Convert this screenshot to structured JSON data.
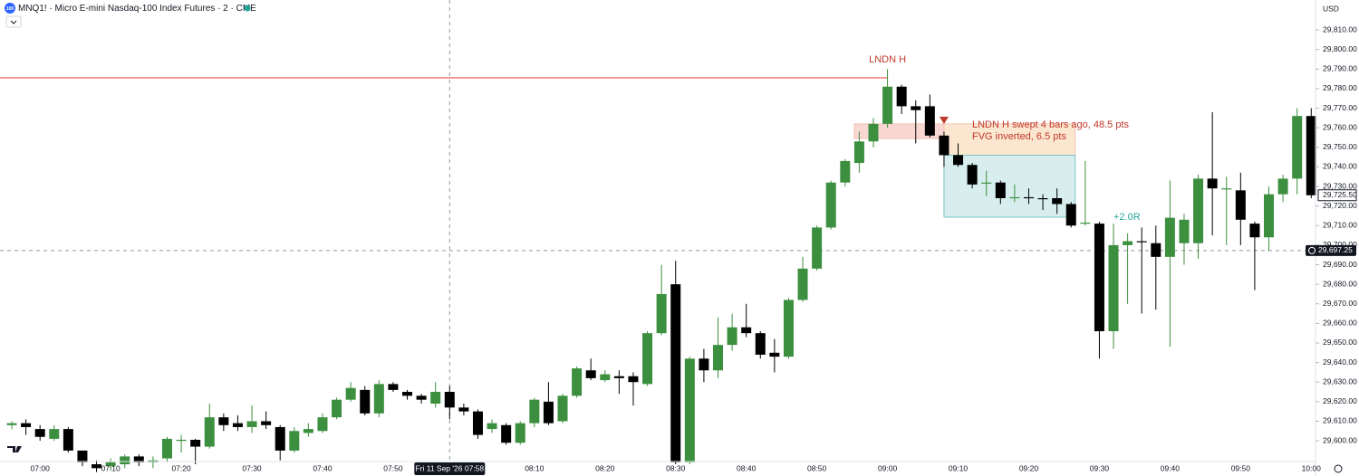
{
  "chart_data": {
    "type": "candlestick",
    "badge": "100",
    "title": "MNQ1! · Micro E-mini Nasdaq-100 Index Futures · 2 · CME",
    "currency": "USD",
    "up_color": "#3c8f3f",
    "down_color": "#000000",
    "categories": [
      null,
      null,
      "07:00",
      null,
      null,
      null,
      null,
      "07:10",
      null,
      null,
      null,
      null,
      "07:20",
      null,
      null,
      null,
      null,
      "07:30",
      null,
      null,
      null,
      null,
      "07:40",
      null,
      null,
      null,
      null,
      "07:50",
      null,
      null,
      null,
      null,
      null,
      null,
      null,
      null,
      null,
      "08:10",
      null,
      null,
      null,
      null,
      "08:20",
      null,
      null,
      null,
      null,
      "08:30",
      null,
      null,
      null,
      null,
      "08:40",
      null,
      null,
      null,
      null,
      "08:50",
      null,
      null,
      null,
      null,
      "09:00",
      null,
      null,
      null,
      null,
      "09:10",
      null,
      null,
      null,
      null,
      "09:20",
      null,
      null,
      null,
      null,
      "09:30",
      null,
      null,
      null,
      null,
      "09:40",
      null,
      null,
      null,
      null,
      "09:50",
      null,
      null,
      null,
      null,
      "10:00"
    ],
    "open": [
      29608,
      29609,
      29606,
      29601,
      29606,
      29595,
      29588,
      29587,
      29588,
      29592,
      29589,
      29591,
      29600,
      29600.5,
      29597,
      29612,
      29609,
      29607,
      29610,
      29607,
      29595,
      29604,
      29605,
      29612,
      29621,
      29626,
      29614,
      29629,
      29625,
      29623,
      29619,
      29625,
      29617,
      29615,
      29606,
      29608,
      29599,
      29609,
      29620,
      29610,
      29623,
      29636,
      29631,
      29633,
      29633,
      29629,
      29655,
      29680,
      29589,
      29642,
      29636,
      29649,
      29658,
      29655,
      29645,
      29643,
      29672,
      29688,
      29709,
      29732,
      29742,
      29753,
      29762,
      29781,
      29771,
      29771,
      29756,
      29746,
      29741,
      29731.5,
      29732,
      29724,
      29724.5,
      29724,
      29724,
      29721,
      29711,
      29711,
      29656,
      29700,
      29702,
      29701,
      29694,
      29701,
      29701,
      29734,
      29729,
      29728,
      29711,
      29704,
      29726,
      29734,
      29766
    ],
    "high": [
      29610,
      29611,
      29608,
      29608,
      29607,
      29595,
      29590,
      29591,
      29593,
      29593,
      29592,
      29602,
      29603,
      29601,
      29619,
      29614,
      29613,
      29618,
      29615,
      29608,
      29607,
      29609,
      29614,
      29622,
      29630,
      29628,
      29631,
      29630,
      29626,
      29624,
      29630,
      29628,
      29619,
      29616,
      29611,
      29609,
      29610,
      29622,
      29630,
      29624,
      29638,
      29642,
      29636,
      29636,
      29635,
      29656,
      29690,
      29692,
      29643,
      29647,
      29663,
      29665,
      29670,
      29656,
      29652,
      29673,
      29694,
      29710,
      29733,
      29744,
      29758,
      29765,
      29790,
      29782,
      29774,
      29777,
      29758,
      29752,
      29742,
      29738,
      29733,
      29731,
      29729,
      29726,
      29729,
      29722,
      29743,
      29712,
      29711,
      29706,
      29709,
      29710,
      29733,
      29716,
      29736,
      29768,
      29735,
      29737,
      29712,
      29730,
      29736,
      29770,
      29770
    ],
    "low": [
      29606,
      29603,
      29600,
      29600,
      29594,
      29587,
      29584,
      29585,
      29586,
      29587,
      29586,
      29589,
      29594,
      29588,
      29596,
      29605,
      29605,
      29604,
      29606,
      29590,
      29594,
      29602,
      29604,
      29611,
      29620,
      29613,
      29612,
      29625,
      29621,
      29619,
      29617,
      29611,
      29613,
      29601,
      29604,
      29598,
      29598,
      29607,
      29608,
      29609,
      29622,
      29631,
      29630,
      29624,
      29618,
      29628,
      29654,
      29588,
      29588,
      29630,
      29632,
      29646,
      29653,
      29642,
      29635,
      29642,
      29671,
      29687,
      29708,
      29730,
      29737,
      29750,
      29760,
      29767,
      29752,
      29755,
      29740,
      29740,
      29729,
      29725,
      29721,
      29722,
      29721,
      29718,
      29716,
      29709,
      29710,
      29642,
      29647,
      29670,
      29665,
      29667,
      29648,
      29690,
      29693,
      29705,
      29700,
      29700,
      29677,
      29697,
      29722,
      29726,
      29724
    ],
    "close": [
      29609,
      29607,
      29602,
      29606,
      29595,
      29589,
      29586,
      29589,
      29592,
      29589,
      29590,
      29601,
      29600.5,
      29597,
      29612,
      29608,
      29607,
      29610,
      29608,
      29595,
      29605,
      29606,
      29612,
      29621,
      29627,
      29614,
      29629,
      29626,
      29623,
      29621,
      29625,
      29617,
      29615,
      29603,
      29609,
      29599,
      29609,
      29621,
      29609,
      29623,
      29637,
      29632,
      29634,
      29632,
      29630,
      29655,
      29675,
      29589,
      29642,
      29636,
      29649,
      29658,
      29655,
      29644,
      29643,
      29672,
      29688,
      29709,
      29732,
      29743,
      29753,
      29762,
      29781,
      29771,
      29769,
      29756,
      29746,
      29741,
      29731,
      29732,
      29724,
      29724.5,
      29724,
      29723.5,
      29721,
      29710,
      29711.5,
      29656,
      29700,
      29702,
      29701.5,
      29694,
      29714,
      29713,
      29734,
      29729,
      29729,
      29713,
      29704,
      29726,
      29734,
      29766,
      29725.5
    ],
    "ylim": [
      29589.4,
      29825.3
    ],
    "yticks": [
      {
        "value": 29600,
        "label": "29,600.00"
      },
      {
        "value": 29610,
        "label": "29,610.00"
      },
      {
        "value": 29620,
        "label": "29,620.00"
      },
      {
        "value": 29630,
        "label": "29,630.00"
      },
      {
        "value": 29640,
        "label": "29,640.00"
      },
      {
        "value": 29650,
        "label": "29,650.00"
      },
      {
        "value": 29660,
        "label": "29,660.00"
      },
      {
        "value": 29670,
        "label": "29,670.00"
      },
      {
        "value": 29680,
        "label": "29,680.00"
      },
      {
        "value": 29690,
        "label": "29,690.00"
      },
      {
        "value": 29700,
        "label": "29,700.00"
      },
      {
        "value": 29710,
        "label": "29,710.00"
      },
      {
        "value": 29720,
        "label": "29,720.00"
      },
      {
        "value": 29730,
        "label": "29,730.00"
      },
      {
        "value": 29740,
        "label": "29,740.00"
      },
      {
        "value": 29750,
        "label": "29,750.00"
      },
      {
        "value": 29760,
        "label": "29,760.00"
      },
      {
        "value": 29770,
        "label": "29,770.00"
      },
      {
        "value": 29780,
        "label": "29,780.00"
      },
      {
        "value": 29790,
        "label": "29,790.00"
      },
      {
        "value": 29800,
        "label": "29,800.00"
      },
      {
        "value": 29810,
        "label": "29,810.00"
      }
    ],
    "level": {
      "text": "LNDN H",
      "value": 29785.5,
      "color": "#e53935"
    },
    "zones": [
      {
        "low": 29754.5,
        "high": 29762,
        "color": "#f8d7d3"
      },
      {
        "low": 29746,
        "high": 29762,
        "color": "#fbe6d0"
      },
      {
        "low": 29714.3,
        "high": 29746,
        "color": "#d8eeee"
      }
    ],
    "notes": [
      "LNDN H swept  4 bars ago, 48.5 pts",
      "FVG inverted, 6.5 pts"
    ],
    "r_label": "+2.0R",
    "last_price": {
      "value": 29725.5,
      "label": "29,725.50"
    },
    "crosshair_price": {
      "value": 29697.25,
      "label": "29,697.25"
    },
    "crosshair_time": "Fri 11 Sep '26  07:58"
  }
}
